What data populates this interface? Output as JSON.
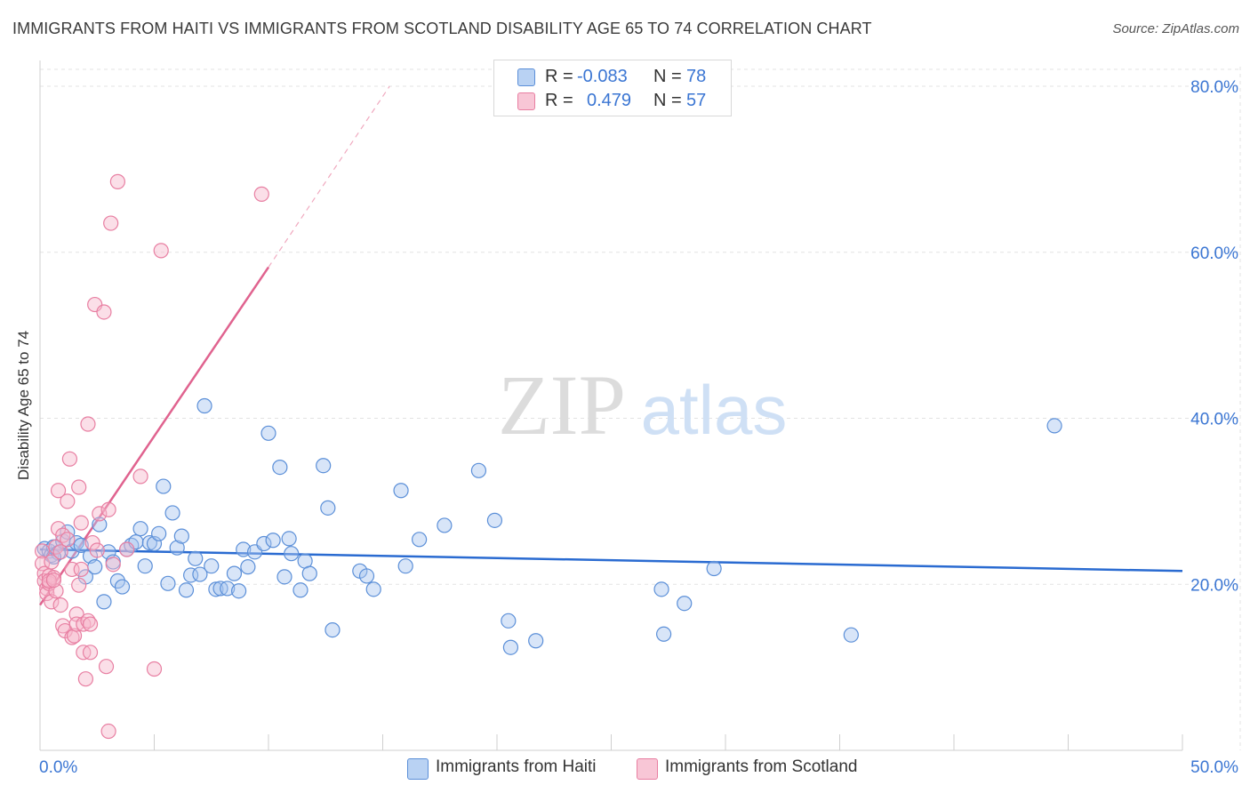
{
  "header": {
    "title": "IMMIGRANTS FROM HAITI VS IMMIGRANTS FROM SCOTLAND DISABILITY AGE 65 TO 74 CORRELATION CHART",
    "source": "Source: ZipAtlas.com"
  },
  "watermark": {
    "zip": "ZIP",
    "atlas": "atlas"
  },
  "legend": {
    "r_label": "R =",
    "n_label": "N =",
    "haiti": {
      "r": "-0.083",
      "n": "78"
    },
    "scotland": {
      "r": "0.479",
      "n": "57"
    }
  },
  "colors": {
    "haiti_fill": "#a9c6f0",
    "haiti_stroke": "#5b8fd8",
    "haiti_line": "#2a6bd1",
    "scotland_fill": "#f6b7cb",
    "scotland_stroke": "#e87fa2",
    "scotland_line": "#e0638f",
    "tick_label": "#3b76d3",
    "grid": "#e3e3e3"
  },
  "chart_data": {
    "type": "scatter",
    "title": "IMMIGRANTS FROM HAITI VS IMMIGRANTS FROM SCOTLAND DISABILITY AGE 65 TO 74 CORRELATION CHART",
    "xlabel": "",
    "ylabel": "Disability Age 65 to 74",
    "xlim": [
      0,
      50
    ],
    "ylim": [
      0,
      80
    ],
    "x_tick_labels": [
      "0.0%",
      "50.0%"
    ],
    "y_ticks": [
      20,
      40,
      60,
      80
    ],
    "y_tick_labels": [
      "20.0%",
      "40.0%",
      "60.0%",
      "80.0%"
    ],
    "legend_position": "top-center",
    "series": [
      {
        "name": "Immigrants from Haiti",
        "r": -0.083,
        "n": 78,
        "trend": {
          "x": [
            0,
            50
          ],
          "y": [
            24.2,
            21.6
          ],
          "dashed_extension": false
        },
        "points": [
          [
            0.2,
            24.3
          ],
          [
            0.4,
            24.0
          ],
          [
            0.5,
            23.5
          ],
          [
            0.6,
            24.5
          ],
          [
            0.8,
            23.8
          ],
          [
            1.0,
            25.2
          ],
          [
            1.2,
            26.3
          ],
          [
            1.4,
            24.0
          ],
          [
            1.6,
            25.0
          ],
          [
            1.8,
            24.7
          ],
          [
            2.0,
            20.9
          ],
          [
            2.2,
            23.4
          ],
          [
            2.4,
            22.1
          ],
          [
            2.6,
            27.2
          ],
          [
            2.8,
            17.9
          ],
          [
            3.0,
            23.9
          ],
          [
            3.2,
            22.7
          ],
          [
            3.4,
            20.4
          ],
          [
            3.6,
            19.7
          ],
          [
            3.8,
            24.2
          ],
          [
            4.0,
            24.7
          ],
          [
            4.2,
            25.1
          ],
          [
            4.4,
            26.7
          ],
          [
            4.6,
            22.2
          ],
          [
            4.8,
            25.0
          ],
          [
            5.0,
            24.9
          ],
          [
            5.2,
            26.1
          ],
          [
            5.4,
            31.8
          ],
          [
            5.6,
            20.1
          ],
          [
            5.8,
            28.6
          ],
          [
            6.0,
            24.4
          ],
          [
            6.2,
            25.8
          ],
          [
            6.4,
            19.3
          ],
          [
            6.6,
            21.1
          ],
          [
            6.8,
            23.1
          ],
          [
            7.0,
            21.2
          ],
          [
            7.2,
            41.5
          ],
          [
            7.5,
            22.2
          ],
          [
            7.7,
            19.4
          ],
          [
            7.9,
            19.5
          ],
          [
            8.2,
            19.5
          ],
          [
            8.5,
            21.3
          ],
          [
            8.7,
            19.2
          ],
          [
            8.9,
            24.2
          ],
          [
            9.1,
            22.1
          ],
          [
            9.4,
            23.9
          ],
          [
            9.8,
            24.9
          ],
          [
            10.0,
            38.2
          ],
          [
            10.2,
            25.3
          ],
          [
            10.5,
            34.1
          ],
          [
            10.7,
            20.9
          ],
          [
            10.9,
            25.5
          ],
          [
            11.0,
            23.7
          ],
          [
            11.4,
            19.3
          ],
          [
            11.6,
            22.8
          ],
          [
            11.8,
            21.3
          ],
          [
            12.4,
            34.3
          ],
          [
            12.6,
            29.2
          ],
          [
            12.8,
            14.5
          ],
          [
            14.0,
            21.6
          ],
          [
            14.3,
            21.0
          ],
          [
            14.6,
            19.4
          ],
          [
            15.8,
            31.3
          ],
          [
            16.0,
            22.2
          ],
          [
            16.6,
            25.4
          ],
          [
            17.7,
            27.1
          ],
          [
            19.2,
            33.7
          ],
          [
            19.9,
            27.7
          ],
          [
            20.5,
            15.6
          ],
          [
            20.6,
            12.4
          ],
          [
            21.7,
            13.2
          ],
          [
            27.2,
            19.4
          ],
          [
            27.3,
            14.0
          ],
          [
            28.2,
            17.7
          ],
          [
            29.5,
            21.9
          ],
          [
            35.5,
            13.9
          ],
          [
            44.4,
            39.1
          ],
          [
            0.6,
            23.3
          ]
        ]
      },
      {
        "name": "Immigrants from Scotland",
        "r": 0.479,
        "n": 57,
        "trend": {
          "x": [
            0,
            10
          ],
          "y": [
            17.5,
            58.2
          ],
          "dashed_extension": true,
          "dashed_to": [
            15.3,
            80.0
          ]
        },
        "points": [
          [
            0.1,
            24.0
          ],
          [
            0.1,
            22.5
          ],
          [
            0.2,
            21.3
          ],
          [
            0.2,
            20.4
          ],
          [
            0.3,
            19.5
          ],
          [
            0.3,
            18.9
          ],
          [
            0.4,
            21.0
          ],
          [
            0.4,
            20.1
          ],
          [
            0.5,
            17.9
          ],
          [
            0.5,
            22.7
          ],
          [
            0.6,
            20.8
          ],
          [
            0.7,
            24.5
          ],
          [
            0.7,
            19.2
          ],
          [
            0.8,
            31.3
          ],
          [
            0.8,
            26.7
          ],
          [
            0.9,
            17.5
          ],
          [
            0.9,
            23.9
          ],
          [
            1.0,
            15.0
          ],
          [
            1.0,
            25.9
          ],
          [
            1.1,
            14.4
          ],
          [
            1.2,
            30.0
          ],
          [
            1.2,
            25.4
          ],
          [
            1.3,
            35.1
          ],
          [
            1.4,
            13.6
          ],
          [
            1.4,
            21.8
          ],
          [
            1.5,
            13.8
          ],
          [
            1.6,
            16.4
          ],
          [
            1.6,
            15.2
          ],
          [
            1.7,
            31.7
          ],
          [
            1.7,
            19.9
          ],
          [
            1.8,
            27.4
          ],
          [
            1.8,
            21.8
          ],
          [
            1.9,
            11.8
          ],
          [
            1.9,
            15.2
          ],
          [
            2.0,
            8.6
          ],
          [
            2.1,
            39.3
          ],
          [
            2.1,
            15.6
          ],
          [
            2.2,
            11.8
          ],
          [
            2.2,
            15.2
          ],
          [
            2.3,
            25.0
          ],
          [
            2.4,
            53.7
          ],
          [
            2.5,
            24.1
          ],
          [
            2.6,
            28.5
          ],
          [
            2.8,
            52.8
          ],
          [
            2.9,
            10.1
          ],
          [
            3.0,
            29.0
          ],
          [
            3.1,
            63.5
          ],
          [
            3.2,
            22.4
          ],
          [
            3.4,
            68.5
          ],
          [
            3.8,
            24.2
          ],
          [
            4.4,
            33.0
          ],
          [
            5.0,
            9.8
          ],
          [
            5.3,
            60.2
          ],
          [
            9.7,
            67.0
          ],
          [
            3.0,
            2.3
          ],
          [
            0.4,
            20.4
          ],
          [
            0.6,
            20.5
          ]
        ]
      }
    ]
  },
  "bottom_legend": {
    "haiti_label": "Immigrants from Haiti",
    "scotland_label": "Immigrants from Scotland"
  }
}
